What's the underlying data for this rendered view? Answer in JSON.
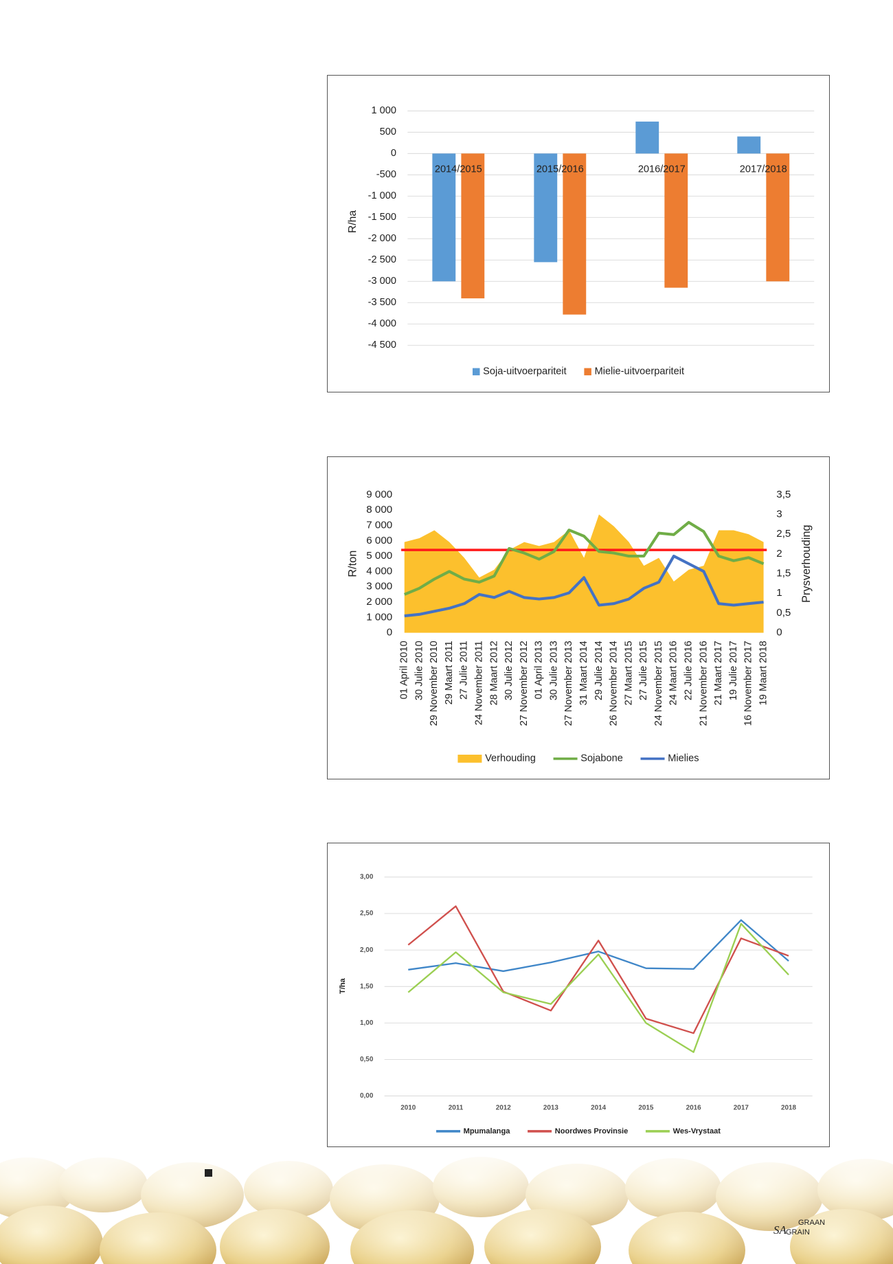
{
  "chart_data": [
    {
      "type": "bar",
      "y_label": "R/ha",
      "categories": [
        "2014/2015",
        "2015/2016",
        "2016/2017",
        "2017/2018"
      ],
      "series": [
        {
          "name": "Soja-uitvoerpariteit",
          "color": "#5b9bd5",
          "values": [
            -3000,
            -2550,
            750,
            400
          ]
        },
        {
          "name": "Mielie-uitvoerpariteit",
          "color": "#ed7d31",
          "values": [
            -3400,
            -3780,
            -3150,
            -3000
          ]
        }
      ],
      "ylim": [
        -4500,
        1000
      ],
      "yticks": [
        {
          "value": -4500,
          "label": "-4 500"
        },
        {
          "value": -4000,
          "label": "-4 000"
        },
        {
          "value": -3500,
          "label": "-3 500"
        },
        {
          "value": -3000,
          "label": "-3 000"
        },
        {
          "value": -2500,
          "label": "-2 500"
        },
        {
          "value": -2000,
          "label": "-2 000"
        },
        {
          "value": -1500,
          "label": "-1 500"
        },
        {
          "value": -1000,
          "label": "-1 000"
        },
        -500,
        0,
        500,
        {
          "value": 1000,
          "label": "1 000"
        }
      ],
      "grid": true,
      "legend": "bottom"
    },
    {
      "type": "line",
      "y_label": "R/ton",
      "y2_label": "Prysverhouding",
      "categories": [
        "01 April 2010",
        "30 Julie 2010",
        "29 November 2010",
        "29 Maart 2011",
        "27 Julie 2011",
        "24 November 2011",
        "28 Maart 2012",
        "30 Julie 2012",
        "27 November 2012",
        "01 April 2013",
        "30 Julie 2013",
        "27 November 2013",
        "31 Maart 2014",
        "29 Julie 2014",
        "26 November 2014",
        "27 Maart 2015",
        "27 Julie 2015",
        "24 November 2015",
        "24 Maart 2016",
        "22 Julie 2016",
        "21 November 2016",
        "21 Maart 2017",
        "19 Julie 2017",
        "16 November 2017",
        "19 Maart 2018"
      ],
      "series": [
        {
          "name": "Verhouding",
          "type": "area",
          "axis": "y2",
          "color": "#fcc02d",
          "values": [
            2.3,
            2.4,
            2.6,
            2.3,
            1.9,
            1.4,
            1.6,
            2.1,
            2.3,
            2.2,
            2.3,
            2.6,
            1.9,
            3.0,
            2.7,
            2.3,
            1.7,
            1.9,
            1.3,
            1.6,
            1.7,
            2.6,
            2.6,
            2.5,
            2.3
          ]
        },
        {
          "name": "Sojabone",
          "color": "#70ad47",
          "values": [
            2500,
            2900,
            3500,
            4000,
            3500,
            3300,
            3700,
            5500,
            5200,
            4800,
            5300,
            6700,
            6300,
            5300,
            5200,
            5000,
            5000,
            6500,
            6400,
            7200,
            6600,
            5000,
            4700,
            4900,
            4500
          ]
        },
        {
          "name": "Mielies",
          "color": "#4472c4",
          "values": [
            1100,
            1200,
            1400,
            1600,
            1900,
            2500,
            2300,
            2700,
            2300,
            2200,
            2300,
            2600,
            3600,
            1800,
            1900,
            2200,
            2900,
            3300,
            5000,
            4500,
            4000,
            1900,
            1800,
            1900,
            2000
          ]
        }
      ],
      "reference_line": {
        "value": 2.1,
        "axis": "y2",
        "color": "#ff1a1a"
      },
      "ylim": [
        0,
        9000
      ],
      "yticks": [
        0,
        {
          "value": 1000,
          "label": "1 000"
        },
        {
          "value": 2000,
          "label": "2 000"
        },
        {
          "value": 3000,
          "label": "3 000"
        },
        {
          "value": 4000,
          "label": "4 000"
        },
        {
          "value": 5000,
          "label": "5 000"
        },
        {
          "value": 6000,
          "label": "6 000"
        },
        {
          "value": 7000,
          "label": "7 000"
        },
        {
          "value": 8000,
          "label": "8 000"
        },
        {
          "value": 9000,
          "label": "9 000"
        }
      ],
      "y2lim": [
        0,
        3.5
      ],
      "y2ticks": [
        0,
        {
          "value": 0.5,
          "label": "0,5"
        },
        1,
        {
          "value": 1.5,
          "label": "1,5"
        },
        2,
        {
          "value": 2.5,
          "label": "2,5"
        },
        3,
        {
          "value": 3.5,
          "label": "3,5"
        }
      ],
      "grid": false,
      "legend": "bottom"
    },
    {
      "type": "line",
      "y_label": "T/ha",
      "categories": [
        "2010",
        "2011",
        "2012",
        "2013",
        "2014",
        "2015",
        "2016",
        "2017",
        "2018"
      ],
      "series": [
        {
          "name": "Mpumalanga",
          "color": "#3f86c8",
          "values": [
            1.73,
            1.82,
            1.71,
            1.83,
            1.98,
            1.75,
            1.74,
            2.41,
            1.85
          ]
        },
        {
          "name": "Noordwes Provinsie",
          "color": "#d0504d",
          "values": [
            2.07,
            2.6,
            1.43,
            1.17,
            2.13,
            1.06,
            0.86,
            2.16,
            1.92
          ]
        },
        {
          "name": "Wes-Vrystaat",
          "color": "#9bcf53",
          "values": [
            1.42,
            1.97,
            1.42,
            1.26,
            1.94,
            1.0,
            0.6,
            2.36,
            1.66
          ]
        }
      ],
      "ylim": [
        0,
        3
      ],
      "yticks": [
        {
          "value": 0,
          "label": "0,00"
        },
        {
          "value": 0.5,
          "label": "0,50"
        },
        {
          "value": 1,
          "label": "1,00"
        },
        {
          "value": 1.5,
          "label": "1,50"
        },
        {
          "value": 2,
          "label": "2,00"
        },
        {
          "value": 2.5,
          "label": "2,50"
        },
        {
          "value": 3,
          "label": "3,00"
        }
      ],
      "grid": true,
      "legend": "bottom"
    }
  ],
  "logo": {
    "top": "GRAAN",
    "left": "SA",
    "bottom": "GRAIN"
  }
}
